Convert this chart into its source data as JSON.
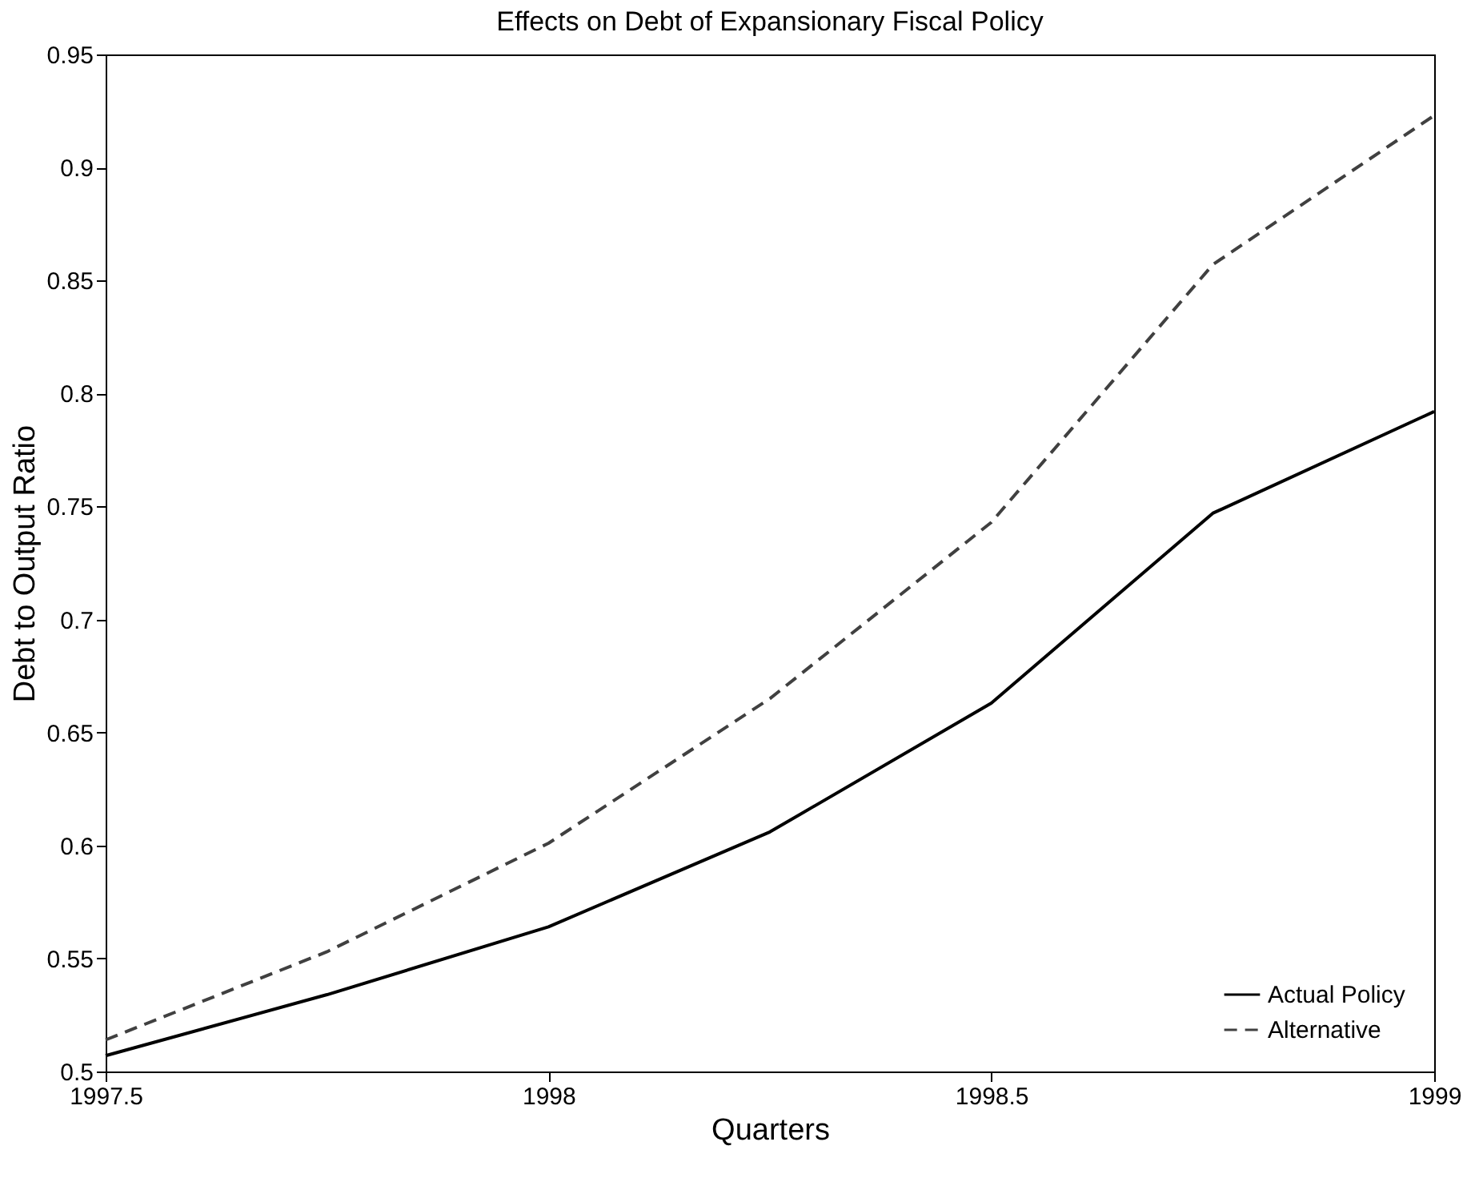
{
  "chart_data": {
    "type": "line",
    "title": "Effects on Debt of Expansionary Fiscal Policy",
    "xlabel": "Quarters",
    "ylabel": "Debt to Output Ratio",
    "x": [
      1997.5,
      1997.75,
      1998,
      1998.25,
      1998.5,
      1998.75,
      1999
    ],
    "series": [
      {
        "name": "Actual Policy",
        "color": "#000000",
        "line_style": "solid",
        "values": [
          0.507,
          0.534,
          0.564,
          0.606,
          0.663,
          0.747,
          0.792
        ]
      },
      {
        "name": "Alternative",
        "color": "#404040",
        "line_style": "dashed",
        "values": [
          0.514,
          0.553,
          0.601,
          0.665,
          0.743,
          0.857,
          0.923
        ]
      }
    ],
    "xlim": [
      1997.5,
      1999
    ],
    "xticks": [
      1997.5,
      1998,
      1998.5,
      1999
    ],
    "ylim": [
      0.5,
      0.95
    ],
    "yticks": [
      0.5,
      0.55,
      0.6,
      0.65,
      0.7,
      0.75,
      0.8,
      0.85,
      0.9,
      0.95
    ],
    "grid": false,
    "legend": "bottom right",
    "marker": "none"
  }
}
